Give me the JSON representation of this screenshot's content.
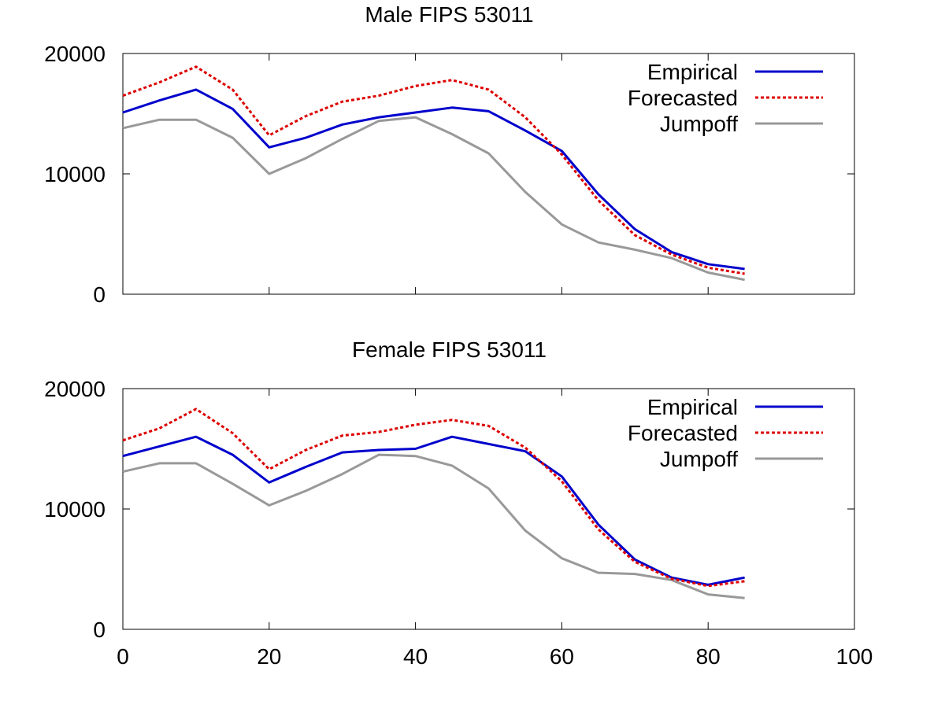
{
  "colors": {
    "empirical": "#0000cc",
    "forecasted": "#dd0000",
    "jumpoff": "#999999",
    "axis": "#000000"
  },
  "chart_data": [
    {
      "type": "line",
      "title": "Male FIPS 53011",
      "xlim": [
        0,
        100
      ],
      "ylim": [
        0,
        20000
      ],
      "yticks": [
        0,
        10000,
        20000
      ],
      "xticks": [
        0,
        20,
        40,
        60,
        80,
        100
      ],
      "show_x_tick_labels": false,
      "legend_position": "top-right",
      "x": [
        0,
        5,
        10,
        15,
        20,
        25,
        30,
        35,
        40,
        45,
        50,
        55,
        60,
        65,
        70,
        75,
        80,
        85
      ],
      "series": [
        {
          "name": "Empirical",
          "style": "solid",
          "color_key": "empirical",
          "values": [
            15100,
            16100,
            17000,
            15400,
            12200,
            13000,
            14100,
            14700,
            15100,
            15500,
            15200,
            13600,
            11900,
            8300,
            5400,
            3500,
            2500,
            2100
          ]
        },
        {
          "name": "Forecasted",
          "style": "dashed",
          "color_key": "forecasted",
          "values": [
            16500,
            17600,
            18900,
            17000,
            13200,
            14800,
            16000,
            16500,
            17300,
            17800,
            17000,
            14700,
            11600,
            7800,
            4900,
            3300,
            2200,
            1700
          ]
        },
        {
          "name": "Jumpoff",
          "style": "solid",
          "color_key": "jumpoff",
          "values": [
            13800,
            14500,
            14500,
            13000,
            10000,
            11300,
            12900,
            14400,
            14700,
            13300,
            11700,
            8500,
            5800,
            4300,
            3700,
            3000,
            1800,
            1200
          ]
        }
      ]
    },
    {
      "type": "line",
      "title": "Female FIPS 53011",
      "xlim": [
        0,
        100
      ],
      "ylim": [
        0,
        20000
      ],
      "yticks": [
        0,
        10000,
        20000
      ],
      "xticks": [
        0,
        20,
        40,
        60,
        80,
        100
      ],
      "show_x_tick_labels": true,
      "legend_position": "top-right",
      "x": [
        0,
        5,
        10,
        15,
        20,
        25,
        30,
        35,
        40,
        45,
        50,
        55,
        60,
        65,
        70,
        75,
        80,
        85
      ],
      "series": [
        {
          "name": "Empirical",
          "style": "solid",
          "color_key": "empirical",
          "values": [
            14400,
            15200,
            16000,
            14500,
            12200,
            13500,
            14700,
            14900,
            15000,
            16000,
            15400,
            14800,
            12700,
            8700,
            5800,
            4300,
            3700,
            4300
          ]
        },
        {
          "name": "Forecasted",
          "style": "dashed",
          "color_key": "forecasted",
          "values": [
            15700,
            16700,
            18300,
            16300,
            13300,
            14900,
            16100,
            16400,
            17000,
            17400,
            16900,
            15100,
            12300,
            8300,
            5600,
            4200,
            3600,
            4000
          ]
        },
        {
          "name": "Jumpoff",
          "style": "solid",
          "color_key": "jumpoff",
          "values": [
            13100,
            13800,
            13800,
            12100,
            10300,
            11500,
            12900,
            14500,
            14400,
            13600,
            11700,
            8200,
            5900,
            4700,
            4600,
            4100,
            2900,
            2600
          ]
        }
      ]
    }
  ]
}
